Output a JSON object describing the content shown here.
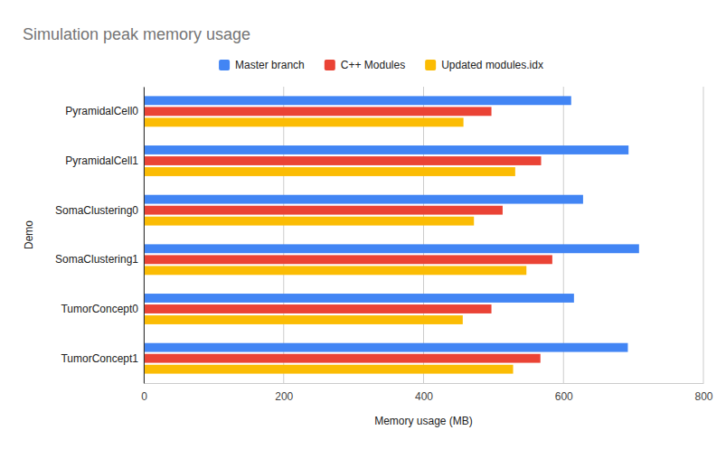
{
  "chart_data": {
    "type": "bar",
    "orientation": "horizontal",
    "title": "Simulation peak memory usage",
    "x_label": "Memory usage (MB)",
    "y_label": "Demo",
    "categories": [
      "PyramidalCell0",
      "PyramidalCell1",
      "SomaClustering0",
      "SomaClustering1",
      "TumorConcept0",
      "TumorConcept1"
    ],
    "series": [
      {
        "name": "Master branch",
        "color": "#4285f4",
        "values": [
          611,
          693,
          628,
          708,
          615,
          692
        ]
      },
      {
        "name": "C++ Modules",
        "color": "#ea4335",
        "values": [
          497,
          568,
          513,
          584,
          497,
          567
        ]
      },
      {
        "name": "Updated modules.idx",
        "color": "#fbbc04",
        "values": [
          457,
          531,
          472,
          547,
          456,
          528
        ]
      }
    ],
    "xlim": [
      0,
      800
    ],
    "xticks": [
      0,
      200,
      400,
      600,
      800
    ],
    "grid": true,
    "legend": "top"
  }
}
